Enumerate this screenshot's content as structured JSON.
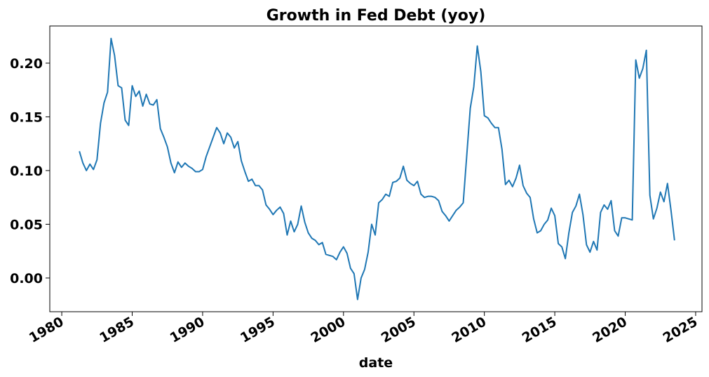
{
  "chart_data": {
    "type": "line",
    "title": "Growth in Fed Debt (yoy)",
    "x_label": "date",
    "color": "#1f77b4",
    "grid": false,
    "x": [
      1981.25,
      1981.5,
      1981.75,
      1982,
      1982.25,
      1982.5,
      1982.75,
      1983,
      1983.25,
      1983.5,
      1983.75,
      1984,
      1984.25,
      1984.5,
      1984.75,
      1985,
      1985.25,
      1985.5,
      1985.75,
      1986,
      1986.25,
      1986.5,
      1986.75,
      1987,
      1987.25,
      1987.5,
      1987.75,
      1988,
      1988.25,
      1988.5,
      1988.75,
      1989,
      1989.25,
      1989.5,
      1989.75,
      1990,
      1990.25,
      1990.5,
      1990.75,
      1991,
      1991.25,
      1991.5,
      1991.75,
      1992,
      1992.25,
      1992.5,
      1992.75,
      1993,
      1993.25,
      1993.5,
      1993.75,
      1994,
      1994.25,
      1994.5,
      1994.75,
      1995,
      1995.25,
      1995.5,
      1995.75,
      1996,
      1996.25,
      1996.5,
      1996.75,
      1997,
      1997.25,
      1997.5,
      1997.75,
      1998,
      1998.25,
      1998.5,
      1998.75,
      1999,
      1999.25,
      1999.5,
      1999.75,
      2000,
      2000.25,
      2000.5,
      2000.75,
      2001,
      2001.25,
      2001.5,
      2001.75,
      2002,
      2002.25,
      2002.5,
      2002.75,
      2003,
      2003.25,
      2003.5,
      2003.75,
      2004,
      2004.25,
      2004.5,
      2004.75,
      2005,
      2005.25,
      2005.5,
      2005.75,
      2006,
      2006.25,
      2006.5,
      2006.75,
      2007,
      2007.25,
      2007.5,
      2007.75,
      2008,
      2008.25,
      2008.5,
      2008.75,
      2009,
      2009.25,
      2009.5,
      2009.75,
      2010,
      2010.25,
      2010.5,
      2010.75,
      2011,
      2011.25,
      2011.5,
      2011.75,
      2012,
      2012.25,
      2012.5,
      2012.75,
      2013,
      2013.25,
      2013.5,
      2013.75,
      2014,
      2014.25,
      2014.5,
      2014.75,
      2015,
      2015.25,
      2015.5,
      2015.75,
      2016,
      2016.25,
      2016.5,
      2016.75,
      2017,
      2017.25,
      2017.5,
      2017.75,
      2018,
      2018.25,
      2018.5,
      2018.75,
      2019,
      2019.25,
      2019.5,
      2019.75,
      2020,
      2020.25,
      2020.5,
      2020.75,
      2021,
      2021.25,
      2021.5,
      2021.75,
      2022,
      2022.25,
      2022.5,
      2022.75,
      2023,
      2023.25,
      2023.5
    ],
    "values": [
      0.118,
      0.107,
      0.1,
      0.106,
      0.101,
      0.11,
      0.144,
      0.163,
      0.173,
      0.223,
      0.207,
      0.179,
      0.177,
      0.147,
      0.142,
      0.179,
      0.169,
      0.174,
      0.16,
      0.171,
      0.162,
      0.161,
      0.166,
      0.139,
      0.131,
      0.122,
      0.107,
      0.098,
      0.108,
      0.103,
      0.107,
      0.104,
      0.102,
      0.099,
      0.099,
      0.101,
      0.113,
      0.122,
      0.131,
      0.14,
      0.135,
      0.125,
      0.135,
      0.131,
      0.121,
      0.127,
      0.109,
      0.099,
      0.09,
      0.092,
      0.086,
      0.086,
      0.082,
      0.068,
      0.064,
      0.059,
      0.063,
      0.066,
      0.06,
      0.04,
      0.053,
      0.043,
      0.05,
      0.067,
      0.052,
      0.042,
      0.037,
      0.035,
      0.031,
      0.033,
      0.022,
      0.021,
      0.02,
      0.017,
      0.024,
      0.029,
      0.023,
      0.009,
      0.004,
      -0.02,
      0.0,
      0.008,
      0.024,
      0.05,
      0.04,
      0.07,
      0.073,
      0.078,
      0.076,
      0.089,
      0.09,
      0.093,
      0.104,
      0.091,
      0.088,
      0.086,
      0.09,
      0.078,
      0.075,
      0.076,
      0.076,
      0.075,
      0.072,
      0.062,
      0.058,
      0.053,
      0.058,
      0.063,
      0.066,
      0.07,
      0.114,
      0.158,
      0.178,
      0.216,
      0.192,
      0.151,
      0.149,
      0.144,
      0.14,
      0.14,
      0.12,
      0.087,
      0.091,
      0.085,
      0.093,
      0.105,
      0.086,
      0.079,
      0.075,
      0.055,
      0.042,
      0.044,
      0.05,
      0.054,
      0.065,
      0.058,
      0.032,
      0.029,
      0.018,
      0.042,
      0.061,
      0.067,
      0.078,
      0.059,
      0.031,
      0.024,
      0.034,
      0.026,
      0.061,
      0.068,
      0.064,
      0.072,
      0.044,
      0.039,
      0.056,
      0.056,
      0.055,
      0.054,
      0.203,
      0.186,
      0.195,
      0.212,
      0.077,
      0.055,
      0.065,
      0.08,
      0.071,
      0.088,
      0.063,
      0.035
    ],
    "xlim": [
      1979.15,
      2025.45
    ],
    "xticks": [
      1980,
      1985,
      1990,
      1995,
      2000,
      2005,
      2010,
      2015,
      2020,
      2025
    ],
    "ylim": [
      -0.0314,
      0.2346
    ],
    "yticks": [
      {
        "value": 0,
        "label": "0.00"
      },
      0.05,
      {
        "value": 0.1,
        "label": "0.10"
      },
      0.15,
      {
        "value": 0.2,
        "label": "0.20"
      }
    ]
  }
}
